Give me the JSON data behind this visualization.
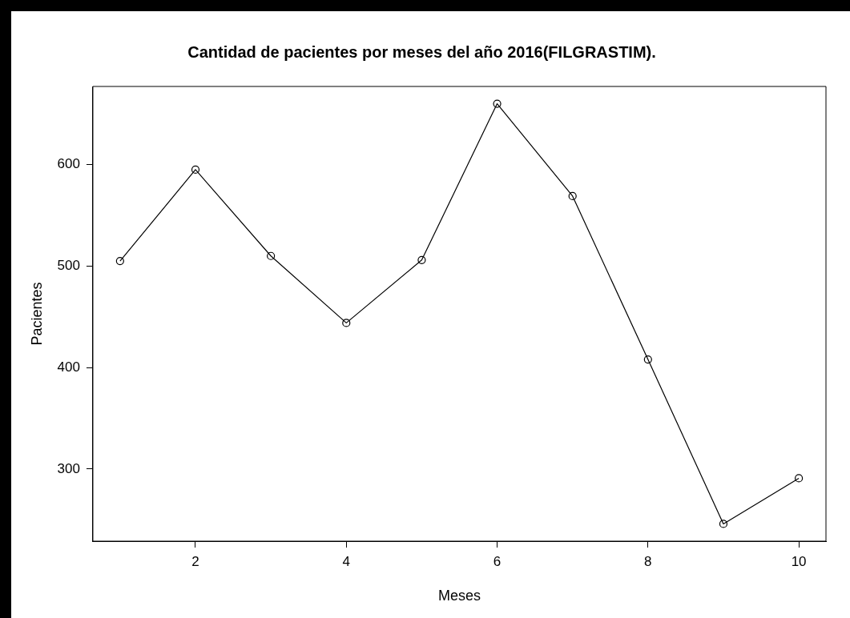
{
  "chart_data": {
    "type": "line",
    "title": "Cantidad de pacientes por meses del año 2016(FILGRASTIM).",
    "xlabel": "Meses",
    "ylabel": "Pacientes",
    "x": [
      1,
      2,
      3,
      4,
      5,
      6,
      7,
      8,
      9,
      10
    ],
    "series": [
      {
        "color": "#000000",
        "values": [
          505,
          595,
          510,
          444,
          506,
          660,
          569,
          408,
          246,
          291
        ]
      }
    ],
    "xlim": [
      0.64,
      10.36
    ],
    "xticks": [
      2,
      4,
      6,
      8,
      10
    ],
    "ylim": [
      229,
      677
    ],
    "yticks": [
      300,
      400,
      500,
      600
    ],
    "grid": false,
    "legend": false,
    "marker": "circle",
    "line_style": "solid"
  }
}
